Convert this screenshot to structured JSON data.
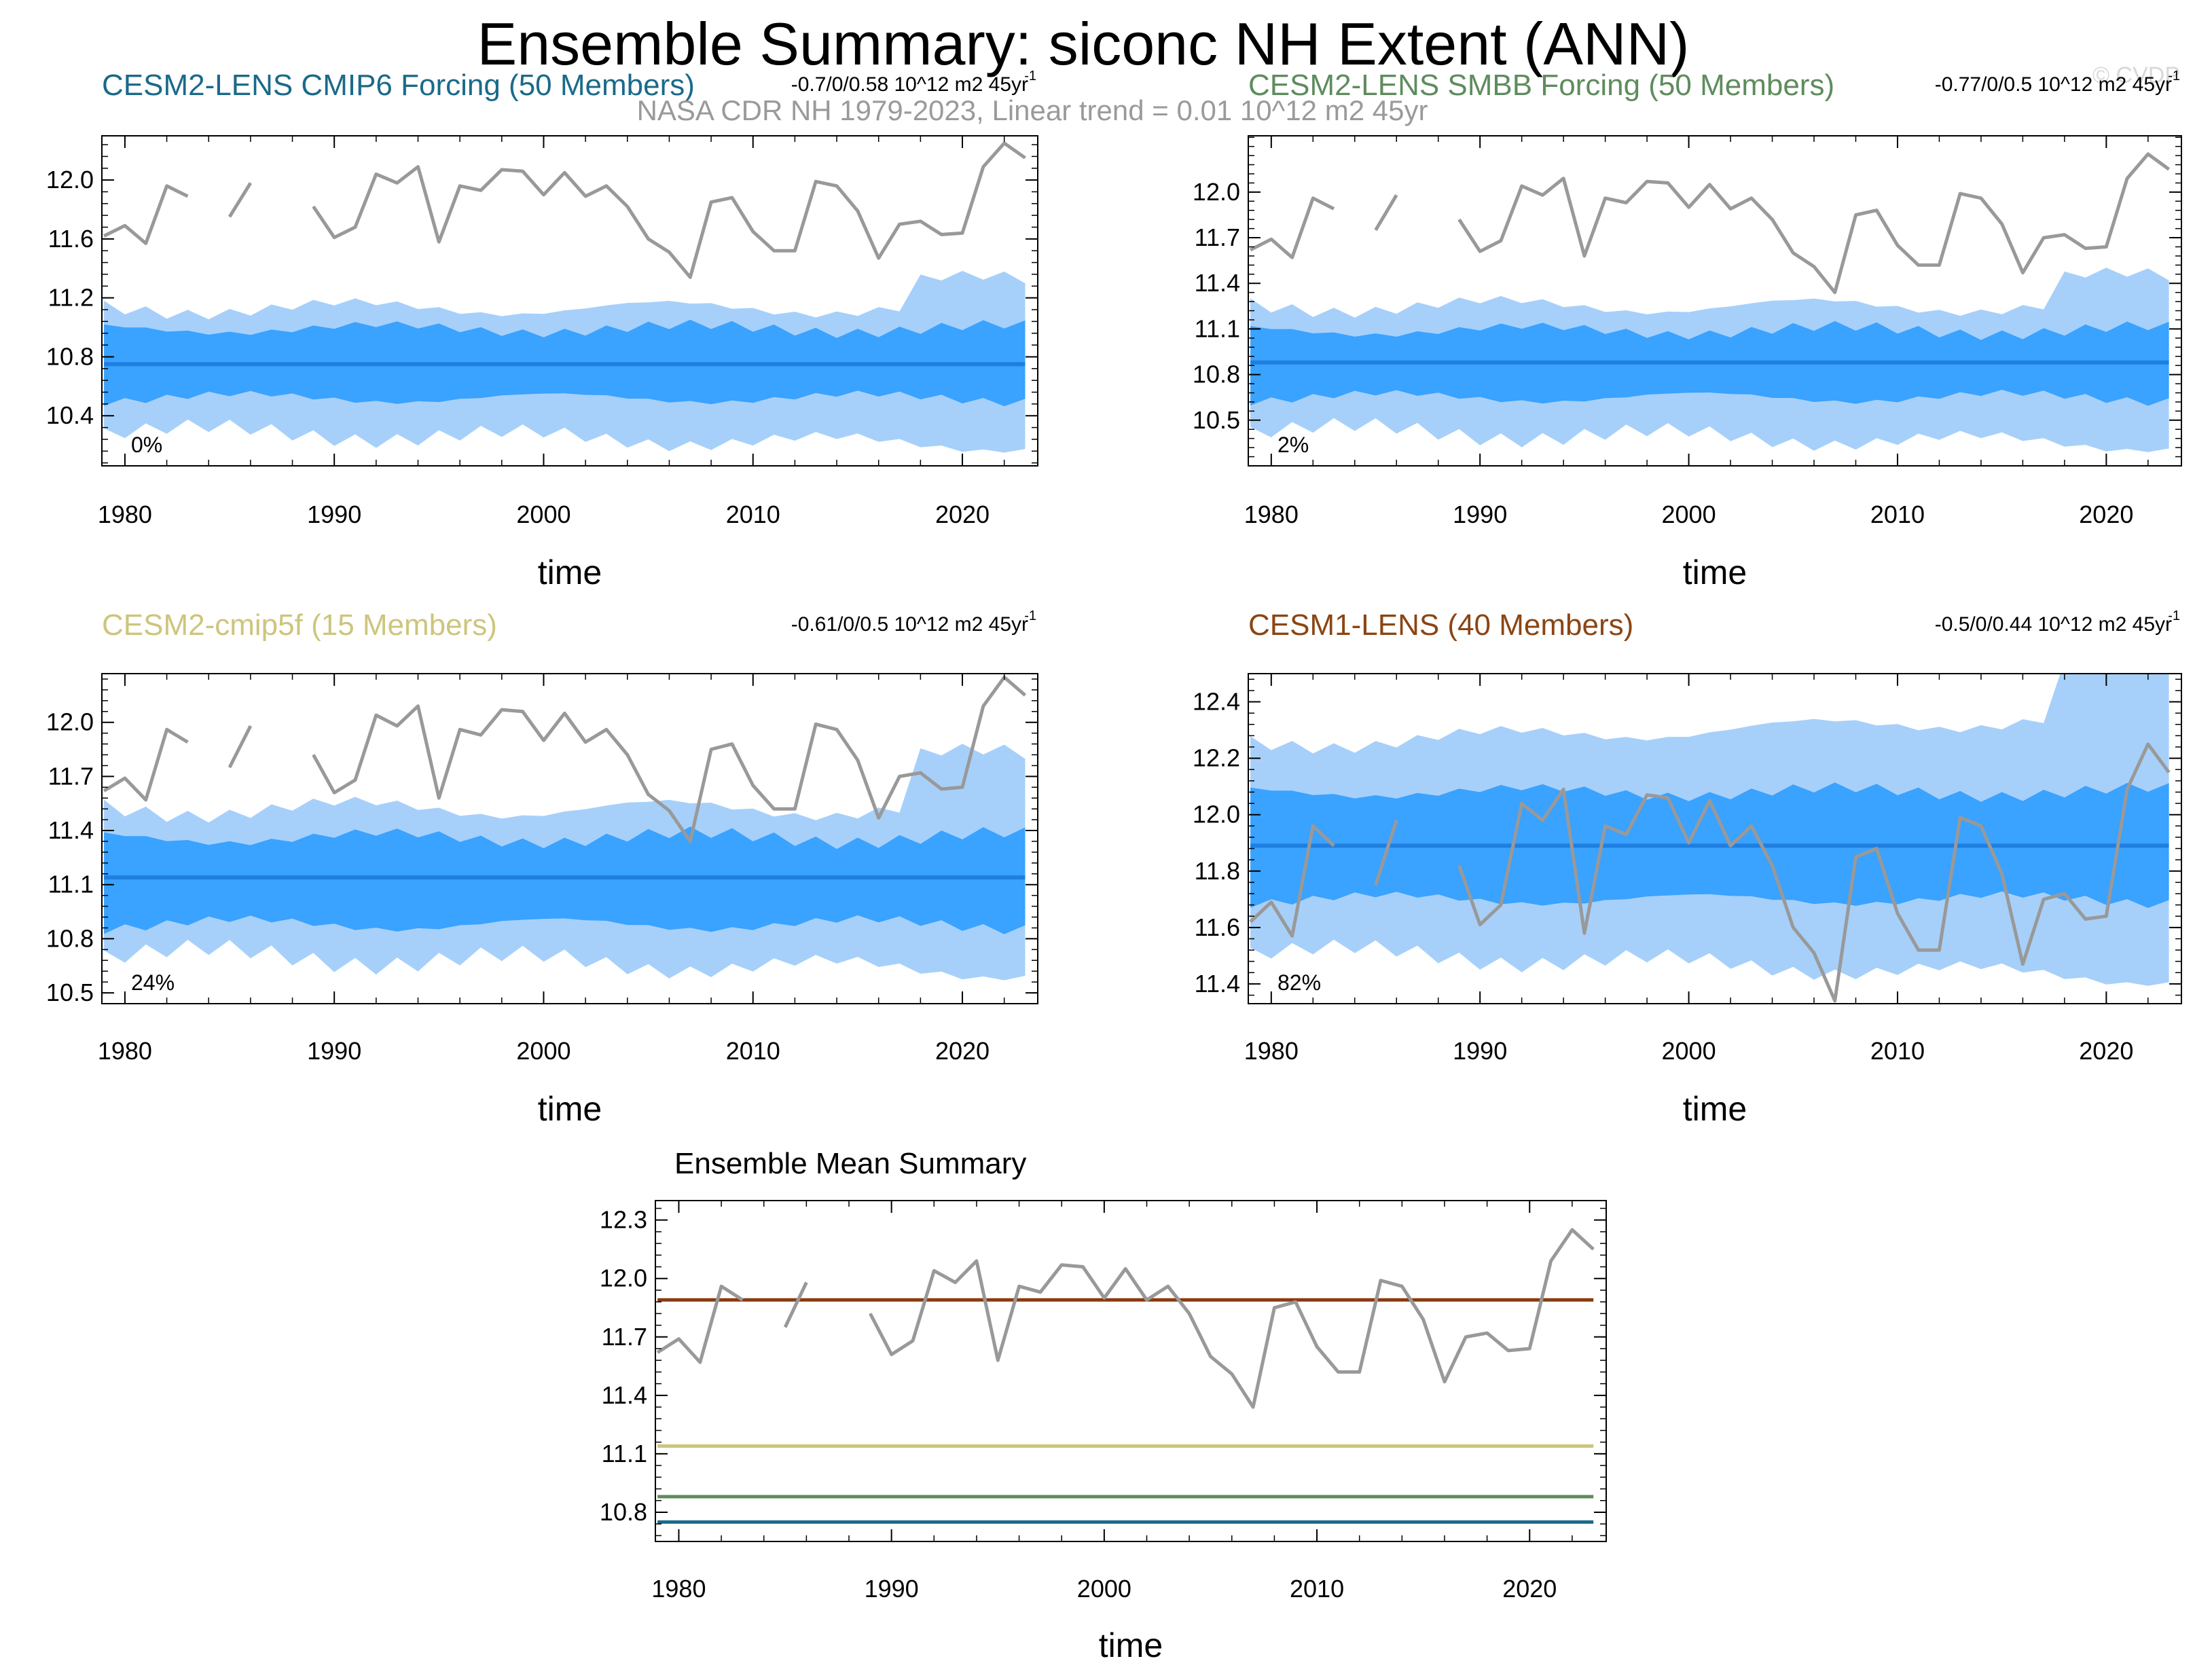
{
  "main_title": "Ensemble Summary: siconc NH Extent (ANN)",
  "watermark": "© CVDP",
  "observations": {
    "label": "NASA CDR NH 1979-2023, Linear trend = 0.01 10^12 m2 45yr",
    "color": "#999999",
    "years": [
      1979,
      1980,
      1981,
      1982,
      1983,
      1984,
      1985,
      1986,
      1987,
      1988,
      1989,
      1990,
      1991,
      1992,
      1993,
      1994,
      1995,
      1996,
      1997,
      1998,
      1999,
      2000,
      2001,
      2002,
      2003,
      2004,
      2005,
      2006,
      2007,
      2008,
      2009,
      2010,
      2011,
      2012,
      2013,
      2014,
      2015,
      2016,
      2017,
      2018,
      2019,
      2020,
      2021,
      2022,
      2023
    ],
    "values": [
      11.62,
      11.69,
      11.57,
      11.96,
      11.89,
      null,
      11.75,
      11.98,
      null,
      null,
      11.82,
      11.61,
      11.68,
      12.04,
      11.98,
      12.09,
      11.58,
      11.96,
      11.93,
      12.07,
      12.06,
      11.9,
      12.05,
      11.89,
      11.96,
      11.82,
      11.6,
      11.51,
      11.34,
      11.85,
      11.88,
      11.65,
      11.52,
      11.52,
      11.99,
      11.96,
      11.79,
      11.47,
      11.7,
      11.72,
      11.63,
      11.64,
      12.09,
      12.25,
      12.15
    ]
  },
  "chart_data": [
    {
      "type": "area",
      "title": "CESM2-LENS CMIP6 Forcing (50 Members)",
      "title_color": "#1a6a8a",
      "trend": "-0.7/0/0.58 10^12 m2 45yr",
      "trend_sup": "-1",
      "percent": "0%",
      "xlabel": "time",
      "xlim": [
        1978.9,
        2023.6
      ],
      "xticks": [
        "1980",
        "1990",
        "2000",
        "2010",
        "2020"
      ],
      "ylim": [
        10.06,
        12.3
      ],
      "yticks": [
        "10.4",
        "10.8",
        "11.2",
        "11.6",
        "12.0"
      ],
      "ensemble_mean": 10.75,
      "outer_upper_base": 11.13,
      "outer_lower_base": 10.3,
      "inner_upper_base": 10.99,
      "inner_lower_base": 10.52
    },
    {
      "type": "area",
      "title": "CESM2-LENS SMBB Forcing (50 Members)",
      "title_color": "#5e8c5e",
      "trend": "-0.77/0/0.5 10^12 m2 45yr",
      "trend_sup": "-1",
      "percent": "2%",
      "xlabel": "time",
      "xlim": [
        1978.9,
        2023.6
      ],
      "xticks": [
        "1980",
        "1990",
        "2000",
        "2010",
        "2020"
      ],
      "ylim": [
        10.2,
        12.37
      ],
      "yticks": [
        "10.5",
        "10.8",
        "11.1",
        "11.4",
        "11.7",
        "12.0"
      ],
      "ensemble_mean": 10.88,
      "outer_upper_base": 11.25,
      "outer_lower_base": 10.44,
      "inner_upper_base": 11.09,
      "inner_lower_base": 10.65
    },
    {
      "type": "area",
      "title": "CESM2-cmip5f (15 Members)",
      "title_color": "#cdc57c",
      "trend": "-0.61/0/0.5 10^12 m2 45yr",
      "trend_sup": "-1",
      "percent": "24%",
      "xlabel": "time",
      "xlim": [
        1978.9,
        2023.6
      ],
      "xticks": [
        "1980",
        "1990",
        "2000",
        "2010",
        "2020"
      ],
      "ylim": [
        10.44,
        12.27
      ],
      "yticks": [
        "10.5",
        "10.8",
        "11.1",
        "11.4",
        "11.7",
        "12.0"
      ],
      "ensemble_mean": 11.14,
      "outer_upper_base": 11.52,
      "outer_lower_base": 10.72,
      "inner_upper_base": 11.36,
      "inner_lower_base": 10.88
    },
    {
      "type": "area",
      "title": "CESM1-LENS (40 Members)",
      "title_color": "#8b4513",
      "trend": "-0.5/0/0.44 10^12 m2 45yr",
      "trend_sup": "-1",
      "percent": "82%",
      "xlabel": "time",
      "xlim": [
        1978.9,
        2023.6
      ],
      "xticks": [
        "1980",
        "1990",
        "2000",
        "2010",
        "2020"
      ],
      "ylim": [
        11.33,
        12.5
      ],
      "yticks": [
        "11.4",
        "11.6",
        "11.8",
        "12.0",
        "12.2",
        "12.4"
      ],
      "ensemble_mean": 11.89,
      "outer_upper_base": 12.25,
      "outer_lower_base": 11.52,
      "inner_upper_base": 12.08,
      "inner_lower_base": 11.7
    },
    {
      "type": "line",
      "title": "Ensemble Mean Summary",
      "title_color": "#000000",
      "xlabel": "time",
      "xlim": [
        1978.9,
        2023.6
      ],
      "xticks": [
        "1980",
        "1990",
        "2000",
        "2010",
        "2020"
      ],
      "ylim": [
        10.65,
        12.4
      ],
      "yticks": [
        "10.8",
        "11.1",
        "11.4",
        "11.7",
        "12.0",
        "12.3"
      ],
      "series": [
        {
          "name": "CESM1-LENS",
          "value": 11.89,
          "color": "#8b3a0f"
        },
        {
          "name": "CESM2-cmip5f",
          "value": 11.14,
          "color": "#cdc57c"
        },
        {
          "name": "CESM2-LENS SMBB Forcing",
          "value": 10.88,
          "color": "#5e8c5e"
        },
        {
          "name": "CESM2-LENS CMIP6 Forcing",
          "value": 10.75,
          "color": "#1a6a8a"
        }
      ]
    }
  ],
  "colors": {
    "outer_band": "#a6d0fa",
    "inner_band": "#3aa2ff",
    "ensemble_mean_line": "#1e7fe0"
  }
}
